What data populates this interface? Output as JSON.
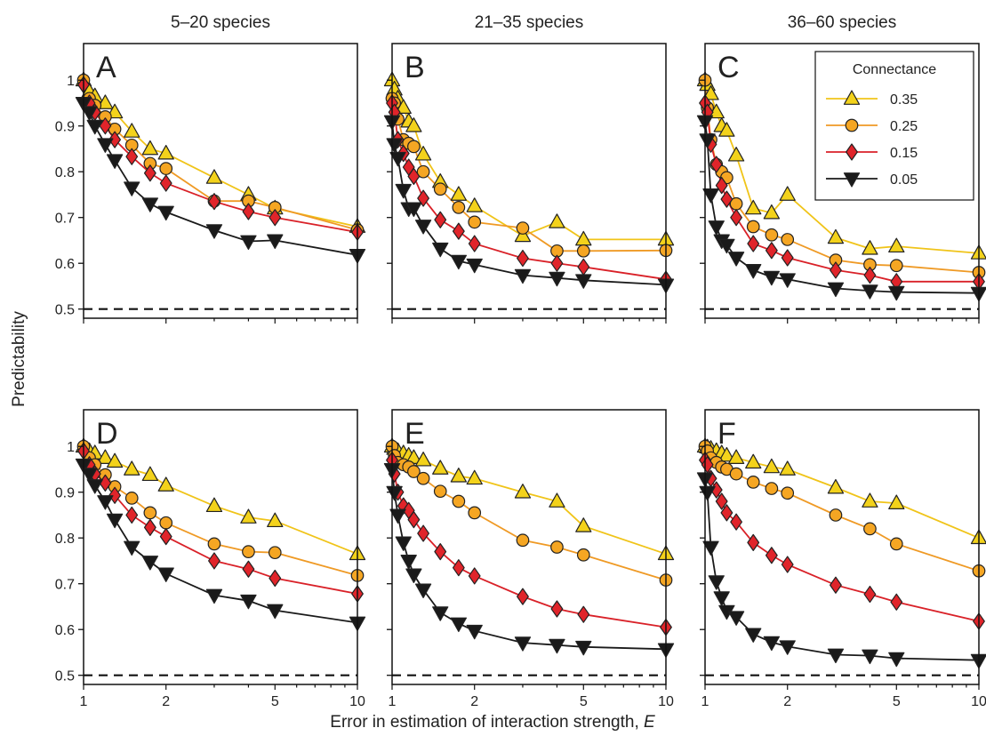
{
  "figure": {
    "ylabel": "Predictability",
    "xlabel_text": "Error in estimation of interaction strength, ",
    "xlabel_var": "E",
    "column_titles": [
      "5–20 species",
      "21–35 species",
      "36–60 species"
    ],
    "x_ticks": [
      1,
      2,
      5,
      10
    ],
    "y_ticks": [
      0.5,
      0.6,
      0.7,
      0.8,
      0.9,
      1
    ],
    "y_tick_labels": [
      "0.5",
      "0.6",
      "0.7",
      "0.8",
      "0.9",
      "1"
    ],
    "baseline": 0.5
  },
  "legend": {
    "title": "Connectance",
    "panel": "C"
  },
  "series_styles": [
    {
      "label": "0.35",
      "marker": "triangle-up",
      "fill": "#f3d21b",
      "line": "#f0c419"
    },
    {
      "label": "0.25",
      "marker": "circle",
      "fill": "#f5a623",
      "line": "#ef9a25"
    },
    {
      "label": "0.15",
      "marker": "diamond",
      "fill": "#e0242a",
      "line": "#d92128"
    },
    {
      "label": "0.05",
      "marker": "triangle-down",
      "fill": "#1a1a1a",
      "line": "#1a1a1a"
    }
  ],
  "chart_data": [
    {
      "panel": "A",
      "type": "line",
      "x_scale": "log",
      "xlim": [
        1,
        10
      ],
      "ylim": [
        0.48,
        1.08
      ],
      "x": [
        1,
        1.05,
        1.1,
        1.2,
        1.3,
        1.5,
        1.75,
        2,
        3,
        4,
        5,
        10
      ],
      "series": [
        {
          "name": "0.35",
          "values": [
            1.0,
            0.975,
            0.965,
            0.95,
            0.93,
            0.888,
            0.85,
            0.84,
            0.787,
            0.75,
            0.72,
            0.68
          ]
        },
        {
          "name": "0.25",
          "values": [
            1.0,
            0.96,
            0.945,
            0.92,
            0.893,
            0.858,
            0.818,
            0.807,
            0.736,
            0.736,
            0.722,
            0.673
          ]
        },
        {
          "name": "0.15",
          "values": [
            0.99,
            0.95,
            0.93,
            0.9,
            0.87,
            0.833,
            0.797,
            0.775,
            0.735,
            0.713,
            0.7,
            0.668
          ]
        },
        {
          "name": "0.05",
          "values": [
            0.95,
            0.93,
            0.9,
            0.86,
            0.825,
            0.765,
            0.73,
            0.712,
            0.672,
            0.648,
            0.65,
            0.618
          ]
        }
      ]
    },
    {
      "panel": "B",
      "type": "line",
      "x_scale": "log",
      "xlim": [
        1,
        10
      ],
      "ylim": [
        0.48,
        1.08
      ],
      "x": [
        1,
        1.02,
        1.05,
        1.1,
        1.15,
        1.2,
        1.3,
        1.5,
        1.75,
        2,
        3,
        4,
        5,
        10
      ],
      "series": [
        {
          "name": "0.35",
          "values": [
            1.0,
            0.98,
            0.96,
            0.94,
            0.91,
            0.9,
            0.838,
            0.778,
            0.75,
            0.725,
            0.66,
            0.69,
            0.652,
            0.652
          ]
        },
        {
          "name": "0.25",
          "values": [
            0.96,
            0.95,
            0.915,
            0.87,
            0.862,
            0.855,
            0.8,
            0.762,
            0.722,
            0.69,
            0.677,
            0.627,
            0.627,
            0.628
          ]
        },
        {
          "name": "0.15",
          "values": [
            0.95,
            0.93,
            0.87,
            0.84,
            0.81,
            0.79,
            0.742,
            0.695,
            0.67,
            0.643,
            0.611,
            0.6,
            0.592,
            0.565
          ]
        },
        {
          "name": "0.05",
          "values": [
            0.91,
            0.86,
            0.83,
            0.76,
            0.72,
            0.72,
            0.682,
            0.632,
            0.605,
            0.597,
            0.574,
            0.568,
            0.563,
            0.553
          ]
        }
      ]
    },
    {
      "panel": "C",
      "type": "line",
      "x_scale": "log",
      "xlim": [
        1,
        10
      ],
      "ylim": [
        0.48,
        1.08
      ],
      "x": [
        1,
        1.02,
        1.05,
        1.1,
        1.15,
        1.2,
        1.3,
        1.5,
        1.75,
        2,
        3,
        4,
        5,
        10
      ],
      "series": [
        {
          "name": "0.35",
          "values": [
            1.0,
            0.99,
            0.97,
            0.93,
            0.9,
            0.89,
            0.836,
            0.72,
            0.71,
            0.75,
            0.656,
            0.632,
            0.637,
            0.622
          ]
        },
        {
          "name": "0.25",
          "values": [
            1.0,
            0.94,
            0.87,
            0.816,
            0.8,
            0.787,
            0.73,
            0.68,
            0.662,
            0.652,
            0.607,
            0.597,
            0.595,
            0.58
          ]
        },
        {
          "name": "0.15",
          "values": [
            0.95,
            0.93,
            0.86,
            0.816,
            0.77,
            0.74,
            0.7,
            0.643,
            0.628,
            0.612,
            0.585,
            0.574,
            0.56,
            0.56
          ]
        },
        {
          "name": "0.05",
          "values": [
            0.91,
            0.87,
            0.75,
            0.68,
            0.65,
            0.64,
            0.612,
            0.585,
            0.57,
            0.565,
            0.545,
            0.54,
            0.537,
            0.535
          ]
        }
      ]
    },
    {
      "panel": "D",
      "type": "line",
      "x_scale": "log",
      "xlim": [
        1,
        10
      ],
      "ylim": [
        0.48,
        1.08
      ],
      "x": [
        1,
        1.05,
        1.1,
        1.2,
        1.3,
        1.5,
        1.75,
        2,
        3,
        4,
        5,
        10
      ],
      "series": [
        {
          "name": "0.35",
          "values": [
            1.0,
            0.99,
            0.985,
            0.975,
            0.967,
            0.95,
            0.938,
            0.915,
            0.87,
            0.845,
            0.837,
            0.765
          ]
        },
        {
          "name": "0.25",
          "values": [
            1.0,
            0.975,
            0.96,
            0.938,
            0.912,
            0.887,
            0.855,
            0.833,
            0.787,
            0.77,
            0.768,
            0.718
          ]
        },
        {
          "name": "0.15",
          "values": [
            0.99,
            0.96,
            0.94,
            0.92,
            0.893,
            0.85,
            0.823,
            0.803,
            0.75,
            0.732,
            0.712,
            0.678
          ]
        },
        {
          "name": "0.05",
          "values": [
            0.96,
            0.94,
            0.915,
            0.88,
            0.84,
            0.78,
            0.748,
            0.722,
            0.675,
            0.663,
            0.642,
            0.615
          ]
        }
      ]
    },
    {
      "panel": "E",
      "type": "line",
      "x_scale": "log",
      "xlim": [
        1,
        10
      ],
      "ylim": [
        0.48,
        1.08
      ],
      "x": [
        1,
        1.02,
        1.05,
        1.1,
        1.15,
        1.2,
        1.3,
        1.5,
        1.75,
        2,
        3,
        4,
        5,
        10
      ],
      "series": [
        {
          "name": "0.35",
          "values": [
            1.0,
            0.995,
            0.99,
            0.985,
            0.98,
            0.975,
            0.97,
            0.952,
            0.935,
            0.93,
            0.9,
            0.88,
            0.826,
            0.765
          ]
        },
        {
          "name": "0.25",
          "values": [
            1.0,
            0.98,
            0.965,
            0.96,
            0.955,
            0.945,
            0.93,
            0.902,
            0.88,
            0.855,
            0.795,
            0.78,
            0.763,
            0.708
          ]
        },
        {
          "name": "0.15",
          "values": [
            0.97,
            0.94,
            0.9,
            0.87,
            0.86,
            0.84,
            0.81,
            0.77,
            0.735,
            0.717,
            0.672,
            0.645,
            0.633,
            0.605
          ]
        },
        {
          "name": "0.05",
          "values": [
            0.95,
            0.9,
            0.85,
            0.79,
            0.75,
            0.72,
            0.687,
            0.637,
            0.613,
            0.597,
            0.571,
            0.566,
            0.562,
            0.557
          ]
        }
      ]
    },
    {
      "panel": "F",
      "type": "line",
      "x_scale": "log",
      "xlim": [
        1,
        10
      ],
      "ylim": [
        0.48,
        1.08
      ],
      "x": [
        1,
        1.02,
        1.05,
        1.1,
        1.15,
        1.2,
        1.3,
        1.5,
        1.75,
        2,
        3,
        4,
        5,
        10
      ],
      "series": [
        {
          "name": "0.35",
          "values": [
            1.0,
            0.998,
            0.995,
            0.99,
            0.985,
            0.98,
            0.975,
            0.965,
            0.955,
            0.95,
            0.91,
            0.88,
            0.876,
            0.8
          ]
        },
        {
          "name": "0.25",
          "values": [
            1.0,
            0.99,
            0.975,
            0.965,
            0.955,
            0.95,
            0.94,
            0.922,
            0.908,
            0.898,
            0.85,
            0.82,
            0.787,
            0.728
          ]
        },
        {
          "name": "0.15",
          "values": [
            0.97,
            0.96,
            0.93,
            0.905,
            0.88,
            0.855,
            0.835,
            0.79,
            0.762,
            0.742,
            0.697,
            0.677,
            0.66,
            0.618
          ]
        },
        {
          "name": "0.05",
          "values": [
            0.93,
            0.9,
            0.78,
            0.705,
            0.67,
            0.64,
            0.627,
            0.59,
            0.572,
            0.563,
            0.545,
            0.543,
            0.537,
            0.533
          ]
        }
      ]
    }
  ]
}
